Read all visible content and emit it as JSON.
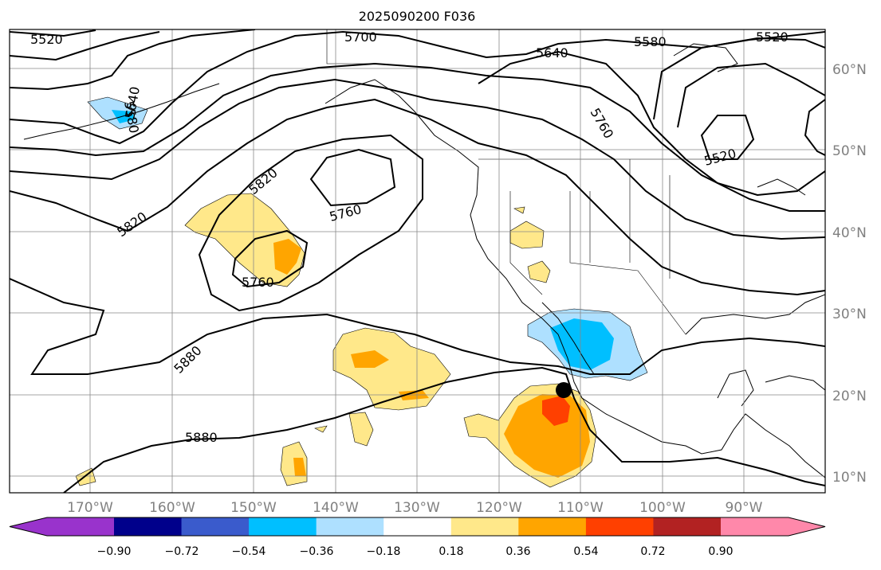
{
  "title": "2025090200 F036",
  "lat_labels": [
    "60°N",
    "50°N",
    "40°N",
    "30°N",
    "20°N",
    "10°N"
  ],
  "lon_labels": [
    "170°W",
    "160°W",
    "150°W",
    "140°W",
    "130°W",
    "120°W",
    "110°W",
    "100°W",
    "90°W"
  ],
  "contour_labels": [
    "5520",
    "5700",
    "5640",
    "5580",
    "5520",
    "5580",
    "5640",
    "5820",
    "5820",
    "5760",
    "5760",
    "5760",
    "5520",
    "5880",
    "5880"
  ],
  "colorbar": {
    "tick_labels": [
      "−0.90",
      "−0.72",
      "−0.54",
      "−0.36",
      "−0.18",
      "0.18",
      "0.36",
      "0.54",
      "0.72",
      "0.90"
    ],
    "colors": [
      "#9933cc",
      "#00008b",
      "#3a5bcc",
      "#00bfff",
      "#aee0ff",
      "#ffffff",
      "#ffe88a",
      "#ffa500",
      "#ff4000",
      "#b22222",
      "#ff88aa"
    ]
  },
  "colors": {
    "grid": "#888888",
    "contour": "#000000",
    "axis_label": "#808080"
  },
  "marker": "storm-center-dot"
}
